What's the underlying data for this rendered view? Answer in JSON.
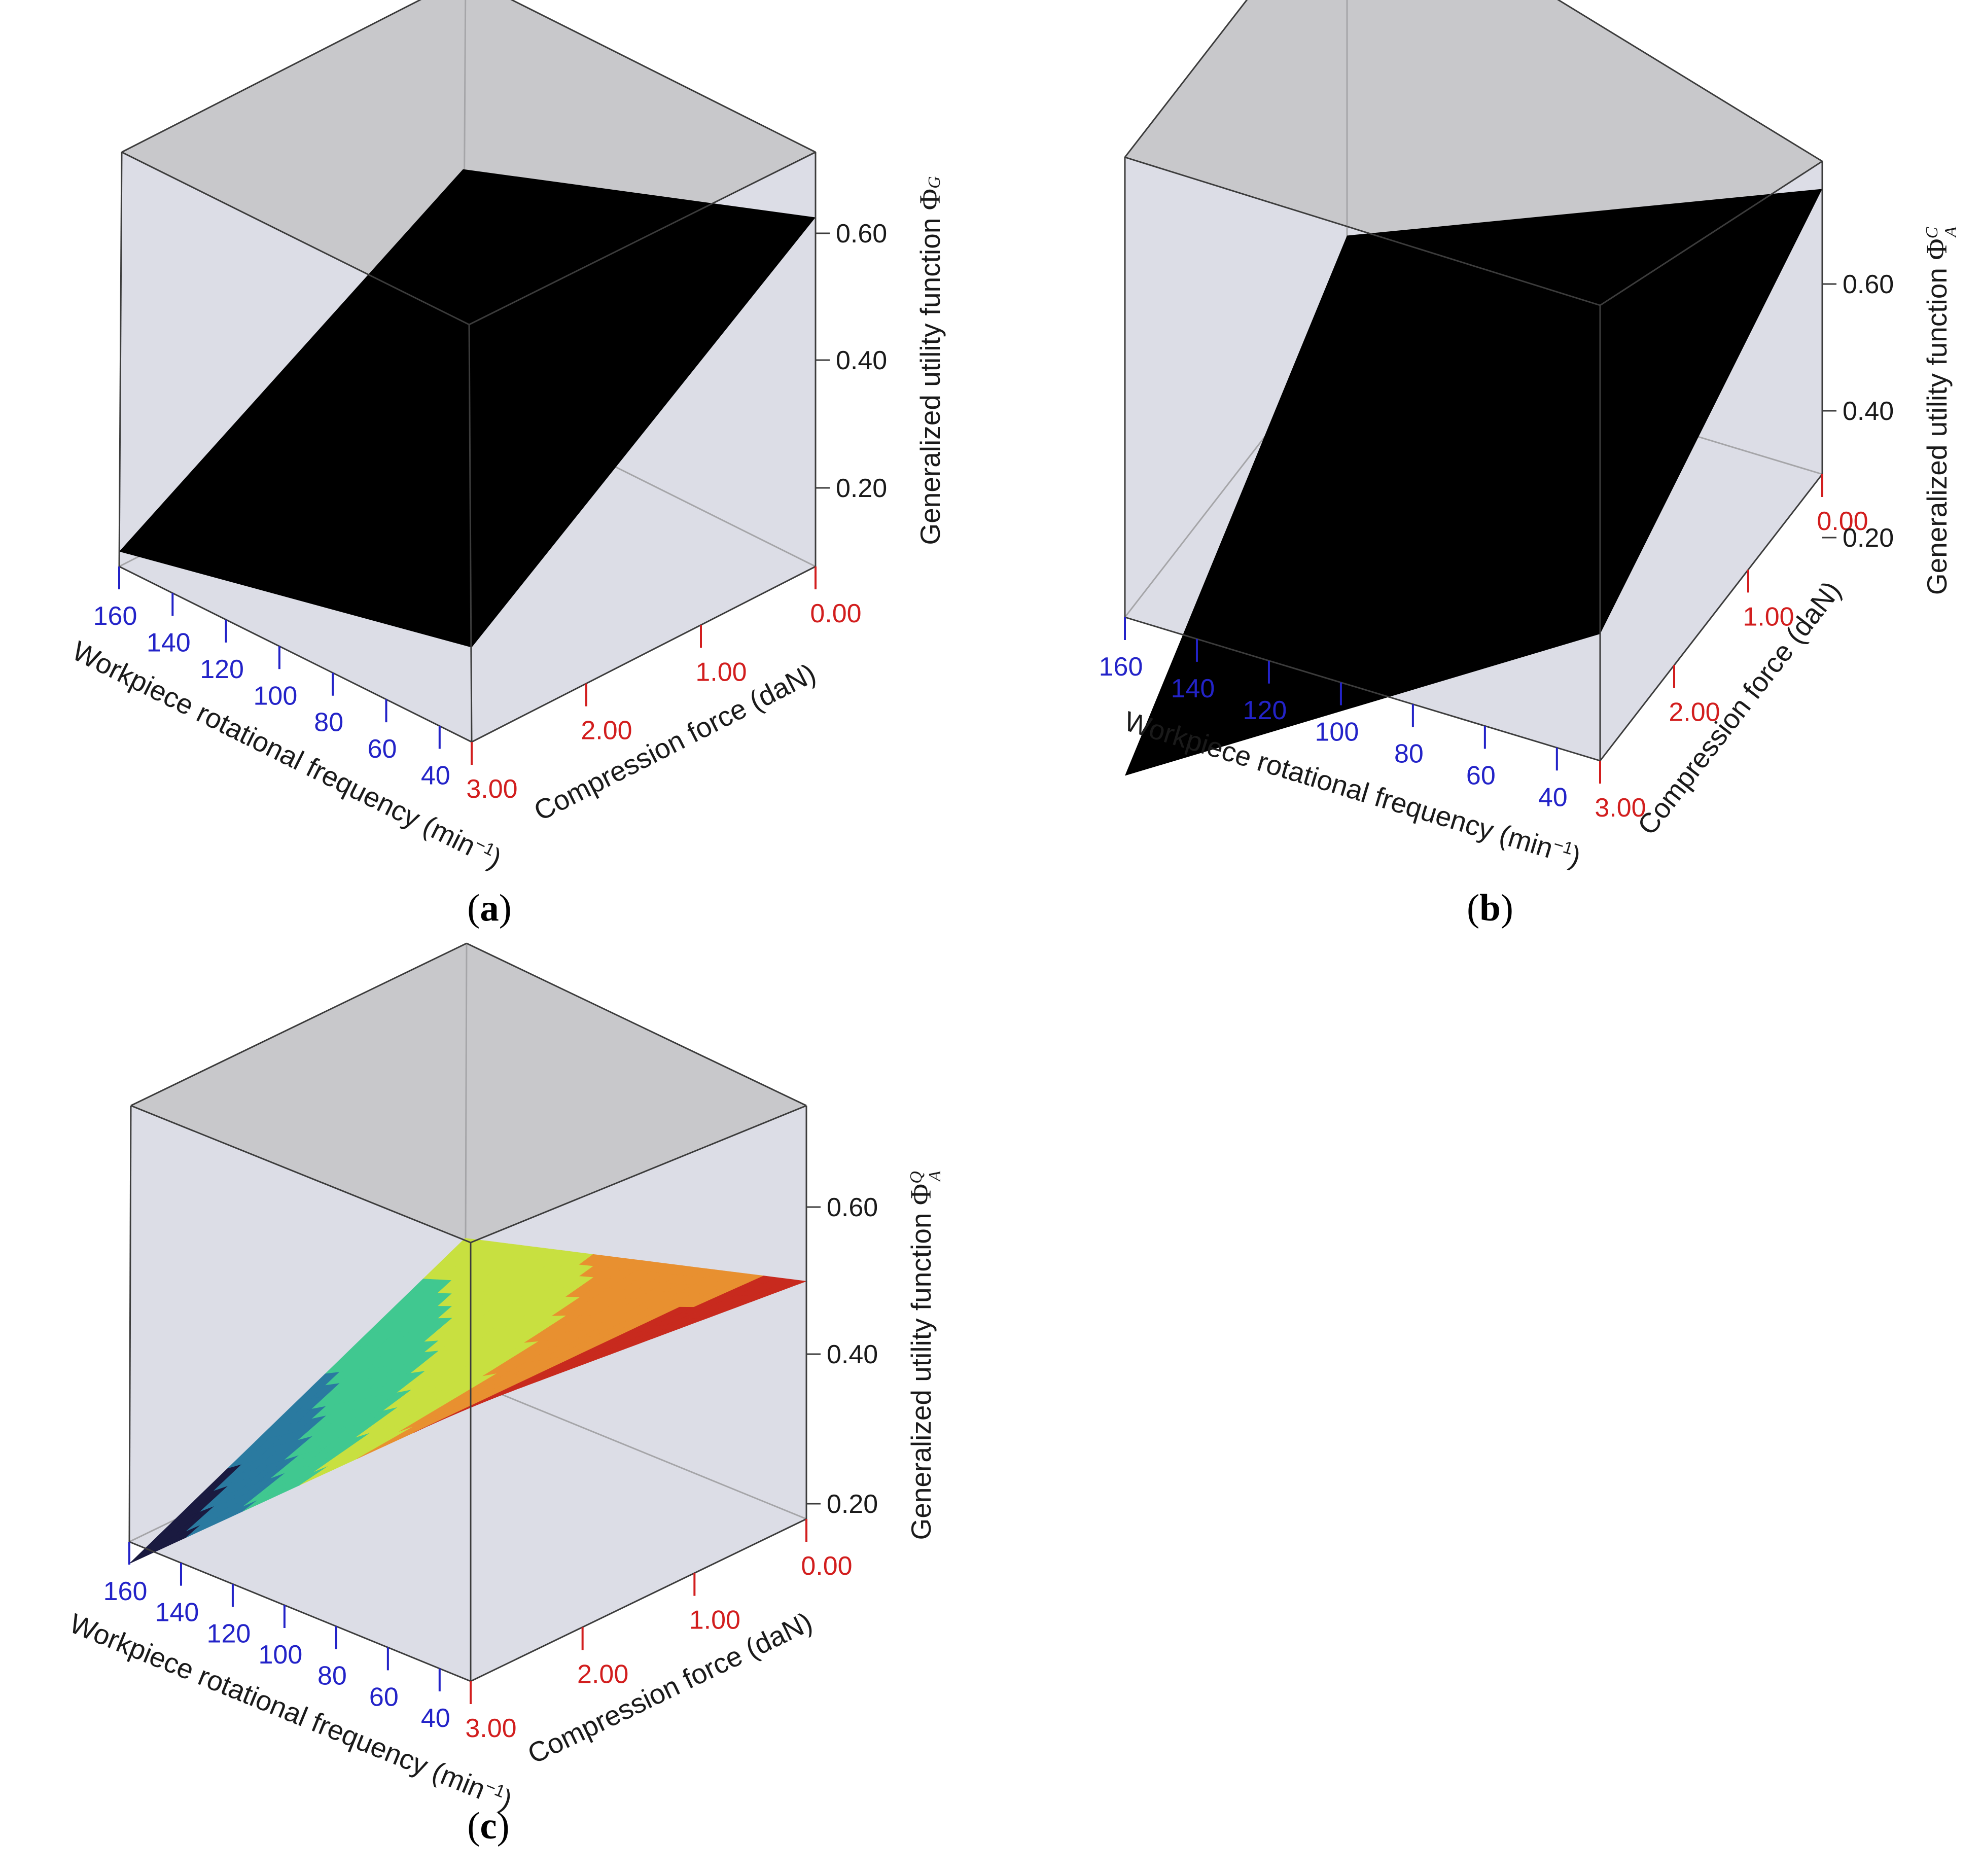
{
  "colors": {
    "side_face": "#dcdde6",
    "top_face": "#c8c8cb",
    "edge": "#3c3c3c",
    "hidden_edge": "#a5a5a8",
    "frequency_ticks": "#2323c8",
    "force_ticks": "#d21e1e",
    "surface_solid": "#000000",
    "surface_color_scale": [
      "#1a1a40",
      "#2a7aa0",
      "#40c890",
      "#c8e040",
      "#e89030",
      "#c82a1e"
    ]
  },
  "chart_data": [
    {
      "type": "surface3d",
      "panel_label": "a",
      "zlabel": {
        "text": "Generalized utility function",
        "symbol": "Φ",
        "sub": "G",
        "sup": ""
      },
      "x_axis": {
        "label": "Workpiece rotational frequency (min",
        "label_exp": "−1",
        "label_end": ")",
        "ticks": [
          "160",
          "140",
          "120",
          "100",
          "80",
          "60",
          "40"
        ]
      },
      "y_axis": {
        "label": "Compression force (daN)",
        "ticks": [
          "0.00",
          "1.00",
          "2.00",
          "3.00"
        ]
      },
      "z_axis": {
        "ticks": [
          "0.20",
          "0.40",
          "0.60"
        ]
      },
      "surface_style": "solid",
      "corners_z": {
        "n160_f0": 0.425,
        "n30_f0": 0.625,
        "n160_f3": 0.1,
        "n30_f3": 0.225
      }
    },
    {
      "type": "surface3d",
      "panel_label": "b",
      "zlabel": {
        "text": "Generalized utility function",
        "symbol": "Φ",
        "sub": "A",
        "sup": "C"
      },
      "x_axis": {
        "label": "Workpiece rotational frequency (min",
        "label_exp": "−1",
        "label_end": ")",
        "ticks": [
          "160",
          "140",
          "120",
          "100",
          "80",
          "60",
          "40"
        ]
      },
      "y_axis": {
        "label": "Compression force (daN)",
        "ticks": [
          "0.00",
          "1.00",
          "2.00",
          "3.00"
        ]
      },
      "z_axis": {
        "ticks": [
          "0.20",
          "0.40",
          "0.60"
        ]
      },
      "surface_style": "solid",
      "corners_z": {
        "n160_f0": 0.45,
        "n30_f0": 0.75,
        "n160_f3": 0.05,
        "n30_f3": 0.5
      }
    },
    {
      "type": "surface3d",
      "panel_label": "c",
      "zlabel": {
        "text": "Generalized utility function",
        "symbol": "Φ",
        "sub": "A",
        "sup": "Q"
      },
      "x_axis": {
        "label": "Workpiece rotational frequency (min",
        "label_exp": "−1",
        "label_end": ")",
        "ticks": [
          "160",
          "140",
          "120",
          "100",
          "80",
          "60",
          "40"
        ]
      },
      "y_axis": {
        "label": "Compression force (daN)",
        "ticks": [
          "0.00",
          "1.00",
          "2.00",
          "3.00"
        ]
      },
      "z_axis": {
        "ticks": [
          "0.20",
          "0.40",
          "0.60"
        ]
      },
      "surface_style": "colormap",
      "corners_z": {
        "n160_f0": 0.37,
        "n30_f0": 0.5,
        "n160_f3": 0.15,
        "n30_f3": 0.55
      }
    }
  ]
}
